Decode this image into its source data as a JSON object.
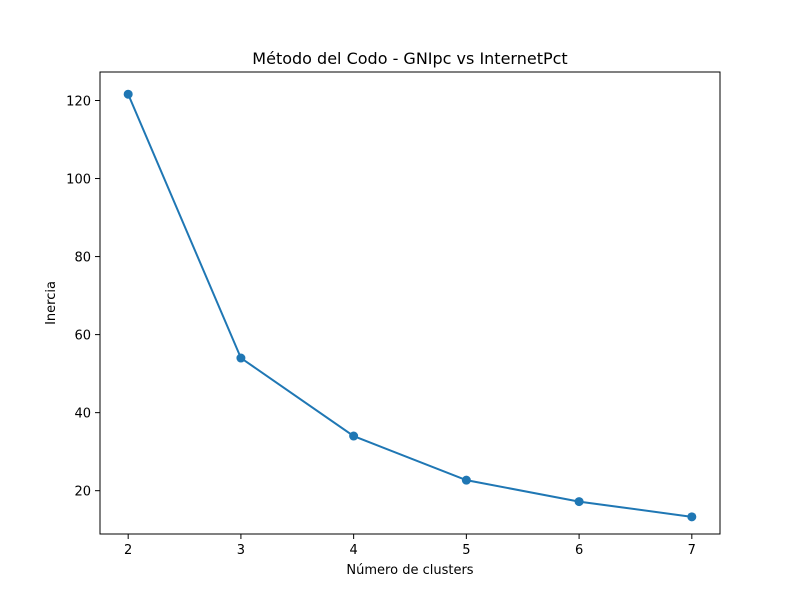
{
  "chart_data": {
    "type": "line",
    "title": "Método del Codo - GNIpc vs InternetPct",
    "xlabel": "Número de clusters",
    "ylabel": "Inercia",
    "x": [
      2,
      3,
      4,
      5,
      6,
      7
    ],
    "series": [
      {
        "values": [
          121.6,
          54.0,
          34.0,
          22.7,
          17.2,
          13.3
        ],
        "color": "#1f77b4",
        "marker": "circle"
      }
    ],
    "xlim": [
      1.75,
      7.25
    ],
    "ylim": [
      8.9,
      127.3
    ],
    "xticks": [
      2,
      3,
      4,
      5,
      6,
      7
    ],
    "yticks": [
      20,
      40,
      60,
      80,
      100,
      120
    ],
    "grid": false,
    "legend": "none"
  }
}
